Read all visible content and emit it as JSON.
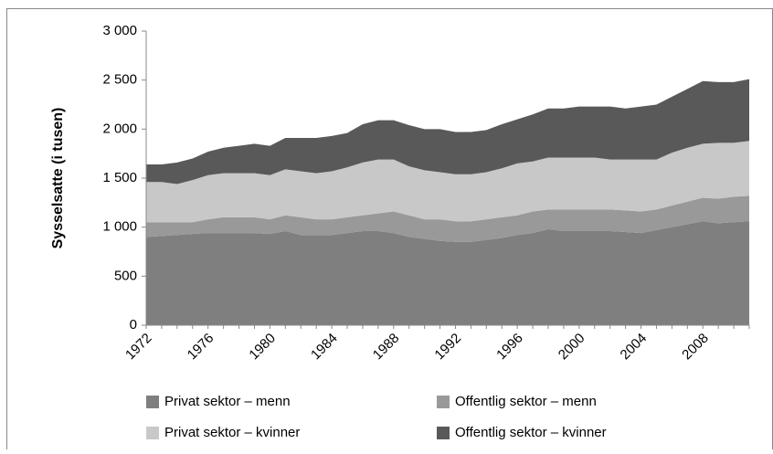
{
  "chart_data": {
    "type": "stacked_area",
    "y_label": "Sysselsatte (i tusen)",
    "categories": [
      "1972",
      null,
      null,
      null,
      "1976",
      null,
      null,
      null,
      "1980",
      null,
      null,
      null,
      "1984",
      null,
      null,
      null,
      "1988",
      null,
      null,
      null,
      "1992",
      null,
      null,
      null,
      "1996",
      null,
      null,
      null,
      "2000",
      null,
      null,
      null,
      "2004",
      null,
      null,
      null,
      "2008",
      null,
      null,
      null
    ],
    "ylim": [
      0,
      3000
    ],
    "yticks": [
      0,
      500,
      {
        "value": 1000,
        "label": "1 000"
      },
      {
        "value": 1500,
        "label": "1 500"
      },
      {
        "value": 2000,
        "label": "2 000"
      },
      {
        "value": 2500,
        "label": "2 500"
      },
      {
        "value": 3000,
        "label": "3 000"
      }
    ],
    "series": [
      {
        "name": "Privat sektor – menn",
        "color": "#7f7f7f",
        "values": [
          900,
          910,
          920,
          930,
          940,
          940,
          940,
          940,
          930,
          960,
          920,
          920,
          920,
          940,
          960,
          960,
          940,
          900,
          880,
          860,
          850,
          850,
          870,
          890,
          920,
          940,
          980,
          960,
          960,
          960,
          960,
          950,
          940,
          970,
          1000,
          1030,
          1060,
          1040,
          1050,
          1060
        ]
      },
      {
        "name": "Offentlig sektor – menn",
        "color": "#999999",
        "values": [
          150,
          140,
          130,
          120,
          140,
          160,
          160,
          160,
          150,
          160,
          180,
          160,
          160,
          160,
          160,
          180,
          220,
          220,
          200,
          220,
          210,
          210,
          210,
          210,
          200,
          220,
          200,
          220,
          220,
          220,
          220,
          220,
          220,
          210,
          220,
          230,
          240,
          250,
          260,
          260
        ]
      },
      {
        "name": "Privat sektor – kvinner",
        "color": "#c8c8c8",
        "values": [
          410,
          410,
          390,
          430,
          450,
          450,
          450,
          450,
          450,
          470,
          470,
          470,
          490,
          510,
          540,
          550,
          530,
          500,
          500,
          480,
          480,
          480,
          480,
          500,
          530,
          510,
          530,
          530,
          530,
          530,
          510,
          520,
          530,
          510,
          540,
          550,
          550,
          570,
          550,
          560
        ]
      },
      {
        "name": "Offentlig sektor – kvinner",
        "color": "#595959",
        "values": [
          180,
          180,
          220,
          220,
          240,
          260,
          280,
          300,
          300,
          320,
          340,
          360,
          360,
          350,
          390,
          400,
          400,
          420,
          420,
          440,
          430,
          430,
          430,
          450,
          450,
          480,
          500,
          500,
          520,
          520,
          540,
          520,
          540,
          560,
          570,
          600,
          640,
          620,
          620,
          630
        ]
      }
    ]
  }
}
